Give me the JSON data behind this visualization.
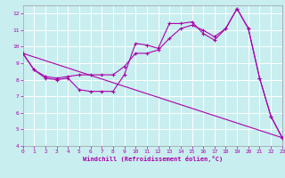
{
  "xlabel": "Windchill (Refroidissement éolien,°C)",
  "bg_color": "#c8eef0",
  "line_color": "#aa00aa",
  "grid_color": "#ffffff",
  "xmin": 0,
  "xmax": 23,
  "ymin": 4,
  "ymax": 12.5,
  "series1_x": [
    0,
    1,
    2,
    3,
    4,
    5,
    6,
    7,
    8,
    9,
    10,
    11,
    12,
    13,
    14,
    15,
    16,
    17,
    18,
    19,
    20,
    21,
    22,
    23
  ],
  "series1_y": [
    9.6,
    8.6,
    8.1,
    8.0,
    8.1,
    7.4,
    7.3,
    7.3,
    7.3,
    8.3,
    10.2,
    10.1,
    9.9,
    11.4,
    11.4,
    11.5,
    10.8,
    10.4,
    11.1,
    12.3,
    11.1,
    8.1,
    5.8,
    4.5
  ],
  "series2_x": [
    0,
    1,
    2,
    3,
    4,
    5,
    6,
    7,
    8,
    9,
    10,
    11,
    12,
    13,
    14,
    15,
    16,
    17,
    18,
    19,
    20,
    21,
    22,
    23
  ],
  "series2_y": [
    9.6,
    8.6,
    8.2,
    8.1,
    8.2,
    8.3,
    8.3,
    8.3,
    8.3,
    8.8,
    9.6,
    9.6,
    9.8,
    10.5,
    11.1,
    11.3,
    11.0,
    10.6,
    11.1,
    12.3,
    11.1,
    8.1,
    5.8,
    4.5
  ],
  "series3_x": [
    0,
    23
  ],
  "series3_y": [
    9.6,
    4.5
  ],
  "yticks": [
    4,
    5,
    6,
    7,
    8,
    9,
    10,
    11,
    12
  ],
  "xticks": [
    0,
    1,
    2,
    3,
    4,
    5,
    6,
    7,
    8,
    9,
    10,
    11,
    12,
    13,
    14,
    15,
    16,
    17,
    18,
    19,
    20,
    21,
    22,
    23
  ]
}
